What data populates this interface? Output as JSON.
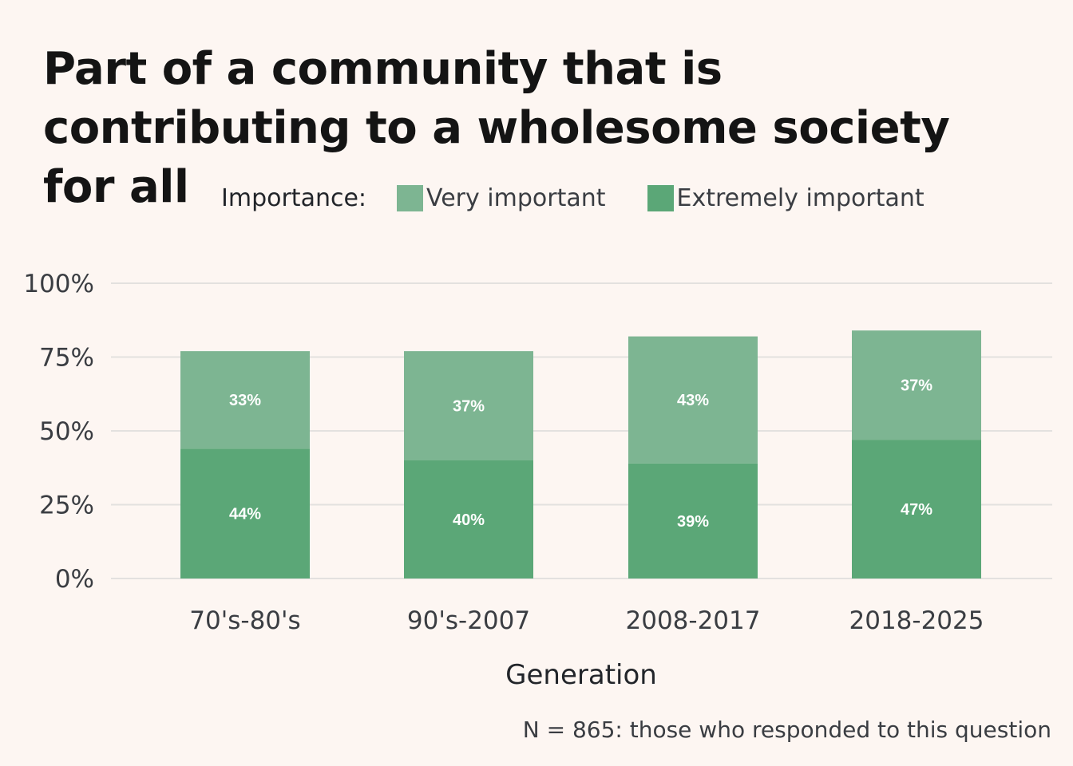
{
  "chart_data": {
    "type": "bar",
    "stacked": true,
    "title": "Part of a community that is contributing to a wholesome society for all",
    "legend_title": "Importance:",
    "legend_placement": "top",
    "xlabel": "Generation",
    "ylabel": "",
    "categories": [
      "70's-80's",
      "90's-2007",
      "2008-2017",
      "2018-2025"
    ],
    "series": [
      {
        "name": "Extremely important",
        "color": "#5ba777",
        "values": [
          44,
          40,
          39,
          47
        ],
        "labels": [
          "44%",
          "40%",
          "39%",
          "47%"
        ]
      },
      {
        "name": "Very important",
        "color": "#7db592",
        "values": [
          33,
          37,
          43,
          37
        ],
        "labels": [
          "33%",
          "37%",
          "43%",
          "37%"
        ]
      }
    ],
    "legend_order": [
      "Very important",
      "Extremely important"
    ],
    "ylim": [
      0,
      100
    ],
    "y_ticks": [
      0,
      25,
      50,
      75,
      100
    ],
    "y_tick_labels": [
      "0%",
      "25%",
      "50%",
      "75%",
      "100%"
    ],
    "grid": true,
    "caption": "N = 865: those who responded to this question"
  }
}
